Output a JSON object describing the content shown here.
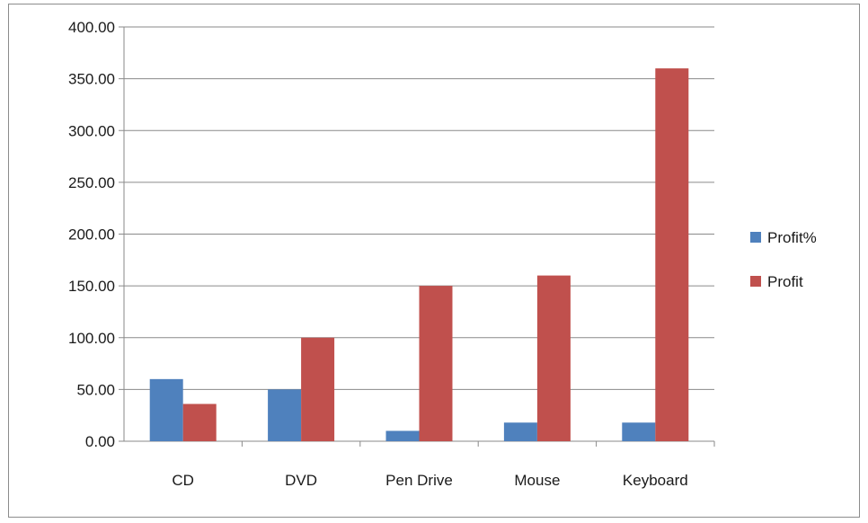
{
  "chart_data": {
    "type": "bar",
    "categories": [
      "CD",
      "DVD",
      "Pen Drive",
      "Mouse",
      "Keyboard"
    ],
    "series": [
      {
        "name": "Profit%",
        "values": [
          60,
          50,
          10,
          18,
          18
        ],
        "color": "#4f81bd"
      },
      {
        "name": "Profit",
        "values": [
          36,
          100,
          150,
          160,
          360
        ],
        "color": "#c0504d"
      }
    ],
    "ylim": [
      0,
      400
    ],
    "yticks": [
      "0.00",
      "50.00",
      "100.00",
      "150.00",
      "200.00",
      "250.00",
      "300.00",
      "350.00",
      "400.00"
    ],
    "grid": true,
    "legend_position": "right"
  }
}
